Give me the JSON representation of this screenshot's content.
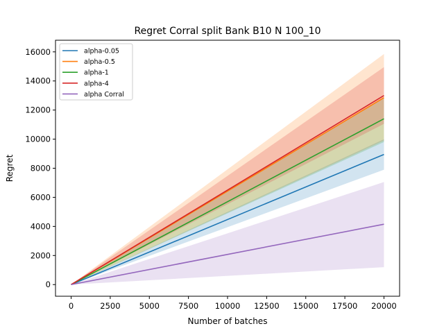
{
  "chart_data": {
    "type": "line",
    "title": "Regret Corral split Bank B10 N 100_10",
    "xlabel": "Number of batches",
    "ylabel": "Regret",
    "xlim": [
      -1000,
      21000
    ],
    "ylim": [
      -800,
      16800
    ],
    "xticks": [
      0,
      2500,
      5000,
      7500,
      10000,
      12500,
      15000,
      17500,
      20000
    ],
    "xtick_labels": [
      "0",
      "2500",
      "5000",
      "7500",
      "10000",
      "12500",
      "15000",
      "17500",
      "20000"
    ],
    "yticks": [
      0,
      2000,
      4000,
      6000,
      8000,
      10000,
      12000,
      14000,
      16000
    ],
    "ytick_labels": [
      "0",
      "2000",
      "4000",
      "6000",
      "8000",
      "10000",
      "12000",
      "14000",
      "16000"
    ],
    "grid": false,
    "legend_position": "upper-left",
    "x": [
      0,
      20000
    ],
    "series": [
      {
        "name": "alpha-0.05",
        "color": "#1f77b4",
        "mean": [
          0,
          8950
        ],
        "lower": [
          0,
          7900
        ],
        "upper": [
          0,
          10000
        ]
      },
      {
        "name": "alpha-0.5",
        "color": "#ff7f0e",
        "mean": [
          0,
          12850
        ],
        "lower": [
          0,
          9900
        ],
        "upper": [
          0,
          15850
        ]
      },
      {
        "name": "alpha-1",
        "color": "#2ca02c",
        "mean": [
          0,
          11400
        ],
        "lower": [
          0,
          9800
        ],
        "upper": [
          0,
          12850
        ]
      },
      {
        "name": "alpha-4",
        "color": "#d62728",
        "mean": [
          0,
          13000
        ],
        "lower": [
          0,
          11050
        ],
        "upper": [
          0,
          14950
        ]
      },
      {
        "name": "alpha Corral",
        "color": "#9467bd",
        "mean": [
          0,
          4150
        ],
        "lower": [
          0,
          1200
        ],
        "upper": [
          0,
          7050
        ]
      }
    ]
  }
}
